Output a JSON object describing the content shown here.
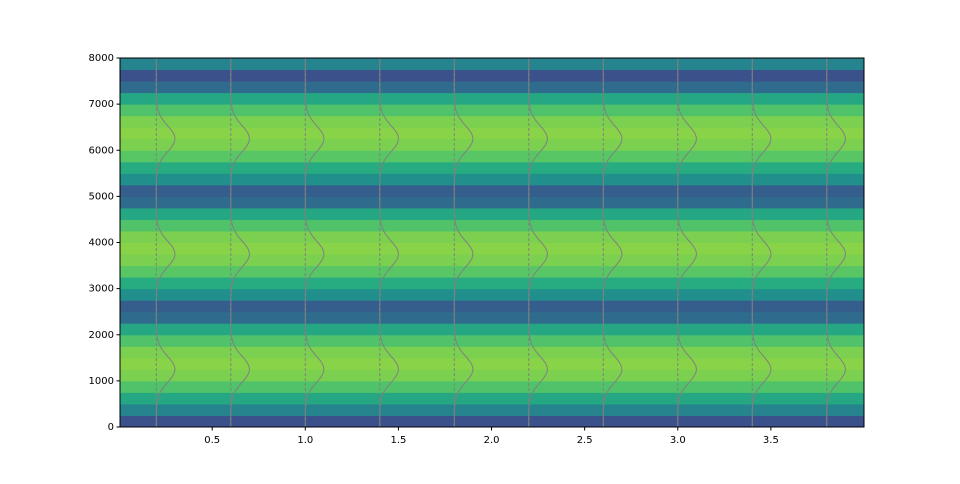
{
  "chart_data": {
    "type": "spectrogram",
    "colormap": "viridis",
    "freq_bin_edges": [
      0,
      250,
      500,
      750,
      1000,
      1250,
      1500,
      1750,
      2000,
      2250,
      2500,
      2750,
      3000,
      3250,
      3500,
      3750,
      4000,
      4250,
      4500,
      4750,
      5000,
      5250,
      5500,
      5750,
      6000,
      6250,
      6500,
      6750,
      7000,
      7250,
      7500,
      7750,
      8000
    ],
    "intensity": [
      0.25,
      0.45,
      0.6,
      0.72,
      0.8,
      0.82,
      0.8,
      0.72,
      0.6,
      0.35,
      0.3,
      0.5,
      0.62,
      0.74,
      0.8,
      0.82,
      0.8,
      0.72,
      0.6,
      0.35,
      0.3,
      0.5,
      0.62,
      0.74,
      0.8,
      0.82,
      0.8,
      0.72,
      0.6,
      0.35,
      0.25,
      0.45
    ],
    "overlay": {
      "x": [
        0.2,
        0.6,
        1.0,
        1.4,
        1.8,
        2.2,
        2.6,
        3.0,
        3.4,
        3.8
      ],
      "peak_y": [
        1250,
        3750,
        6250
      ],
      "amplitude": 0.1,
      "sigma": 400,
      "color": "#808080"
    },
    "xlim": [
      0.005,
      4.0
    ],
    "ylim": [
      0,
      8000
    ],
    "xticks": [
      0.5,
      {
        "value": 1,
        "label": "1.0"
      },
      1.5,
      {
        "value": 2,
        "label": "2.0"
      },
      2.5,
      {
        "value": 3,
        "label": "3.0"
      },
      3.5
    ],
    "yticks": [
      0,
      1000,
      2000,
      3000,
      4000,
      5000,
      6000,
      7000,
      8000
    ]
  }
}
